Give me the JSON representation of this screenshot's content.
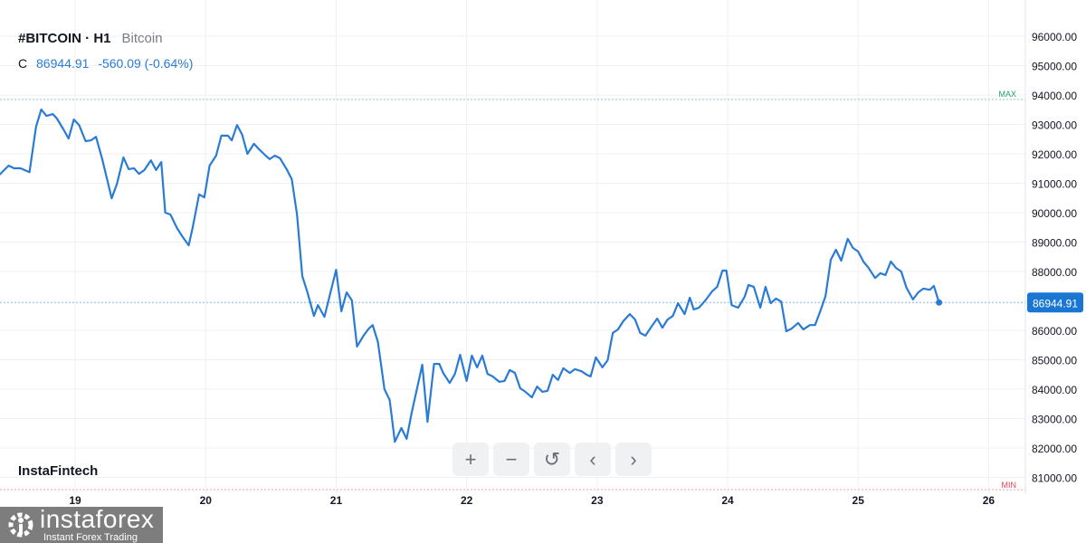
{
  "header": {
    "symbol": "#BITCOIN · H1",
    "description": "Bitcoin",
    "close_label": "C",
    "close_value": "86944.91",
    "change": "-560.09 (-0.64%)"
  },
  "branding": {
    "chart_brand": "InstaFintech",
    "logo_name": "instaforex",
    "logo_tagline": "Instant Forex Trading"
  },
  "controls": [
    {
      "name": "zoom-in-button",
      "icon": "plus-icon",
      "glyph": "+"
    },
    {
      "name": "zoom-out-button",
      "icon": "minus-icon",
      "glyph": "−"
    },
    {
      "name": "reset-button",
      "icon": "reset-icon",
      "glyph": "↺"
    },
    {
      "name": "scroll-left-button",
      "icon": "chevron-left-icon",
      "glyph": "‹"
    },
    {
      "name": "scroll-right-button",
      "icon": "chevron-right-icon",
      "glyph": "›"
    }
  ],
  "colors": {
    "line": "#2a7bd5",
    "max": "#26a269",
    "min": "#e0445a",
    "price_tag": "#1976d2"
  },
  "chart_data": {
    "type": "line",
    "xlabel": "",
    "ylabel": "",
    "x_ticks": [
      "19",
      "20",
      "21",
      "22",
      "23",
      "24",
      "25",
      "26"
    ],
    "y_ticks": [
      "96000.00",
      "95000.00",
      "94000.00",
      "93000.00",
      "92000.00",
      "91000.00",
      "90000.00",
      "89000.00",
      "88000.00",
      "86000.00",
      "85000.00",
      "84000.00",
      "83000.00",
      "82000.00",
      "81000.00"
    ],
    "ylim": [
      80400,
      96500
    ],
    "xlim": [
      18.42,
      26.25
    ],
    "grid": true,
    "last_price": {
      "value": 86944.91,
      "label": "86944.91"
    },
    "max_line": {
      "value": 93850,
      "label": "MAX"
    },
    "min_line": {
      "value": 80580,
      "label": "MIN"
    },
    "series": [
      {
        "x": [
          18.42,
          18.49,
          18.53,
          18.58,
          18.65,
          18.7,
          18.74,
          18.78,
          18.83,
          18.86,
          18.91,
          18.95,
          18.99,
          19.03,
          19.08,
          19.12,
          19.16,
          19.21,
          19.28,
          19.32,
          19.37,
          19.41,
          19.45,
          19.49,
          19.53,
          19.58,
          19.62,
          19.66,
          19.69,
          19.73,
          19.78,
          19.82,
          19.87,
          19.9,
          19.95,
          19.99,
          20.03,
          20.08,
          20.12,
          20.17,
          20.2,
          20.24,
          20.28,
          20.32,
          20.37,
          20.41,
          20.46,
          20.49,
          20.53,
          20.57,
          20.62,
          20.66,
          20.7,
          20.74,
          20.78,
          20.83,
          20.86,
          20.91,
          21.0,
          21.04,
          21.08,
          21.12,
          21.16,
          21.21,
          21.25,
          21.28,
          21.32,
          21.37,
          21.41,
          21.45,
          21.5,
          21.54,
          21.58,
          21.62,
          21.66,
          21.7,
          21.75,
          21.79,
          21.82,
          21.87,
          21.91,
          21.95,
          22.0,
          22.04,
          22.08,
          22.12,
          22.16,
          22.2,
          22.25,
          22.29,
          22.33,
          22.37,
          22.41,
          22.45,
          22.5,
          22.54,
          22.58,
          22.62,
          22.66,
          22.7,
          22.74,
          22.79,
          22.83,
          22.88,
          22.92,
          22.95,
          22.99,
          23.04,
          23.08,
          23.12,
          23.16,
          23.2,
          23.25,
          23.29,
          23.33,
          23.37,
          23.42,
          23.46,
          23.5,
          23.54,
          23.58,
          23.62,
          23.67,
          23.71,
          23.74,
          23.78,
          23.83,
          23.88,
          23.92,
          23.96,
          23.99,
          24.03,
          24.08,
          24.13,
          24.16,
          24.2,
          24.25,
          24.29,
          24.33,
          24.37,
          24.41,
          24.45,
          24.49,
          24.54,
          24.58,
          24.63,
          24.67,
          24.71,
          24.75,
          24.79,
          24.83,
          24.87,
          24.92,
          24.96,
          25.0,
          25.04,
          25.08,
          25.13,
          25.17,
          25.21,
          25.25,
          25.29,
          25.33,
          25.37,
          25.42,
          25.46,
          25.5,
          25.55,
          25.58,
          25.62
        ],
        "values": [
          91290,
          91600,
          91510,
          91510,
          91380,
          92920,
          93510,
          93290,
          93350,
          93200,
          92830,
          92520,
          93170,
          92980,
          92430,
          92460,
          92580,
          91780,
          90490,
          90980,
          91880,
          91480,
          91510,
          91320,
          91450,
          91780,
          91450,
          91720,
          90000,
          89940,
          89480,
          89200,
          88890,
          89480,
          90620,
          90520,
          91600,
          91940,
          92620,
          92620,
          92460,
          92980,
          92650,
          92000,
          92340,
          92150,
          91940,
          91820,
          91940,
          91850,
          91480,
          91140,
          89940,
          87850,
          87290,
          86490,
          86860,
          86460,
          88060,
          86650,
          87290,
          87020,
          85450,
          85820,
          86060,
          86180,
          85600,
          84000,
          83630,
          82210,
          82680,
          82310,
          83230,
          84030,
          84830,
          82890,
          84860,
          84860,
          84550,
          84210,
          84520,
          85170,
          84280,
          85140,
          84740,
          85140,
          84520,
          84430,
          84250,
          84280,
          84650,
          84550,
          84030,
          83910,
          83720,
          84090,
          83910,
          83940,
          84490,
          84310,
          84710,
          84550,
          84680,
          84610,
          84490,
          84430,
          85080,
          84740,
          84980,
          85910,
          86030,
          86310,
          86550,
          86370,
          85910,
          85820,
          86150,
          86400,
          86090,
          86370,
          86490,
          86920,
          86550,
          87110,
          86710,
          86770,
          87020,
          87320,
          87480,
          88030,
          88030,
          86860,
          86770,
          87140,
          87540,
          87480,
          86770,
          87480,
          86920,
          87080,
          86980,
          85970,
          86060,
          86250,
          86030,
          86180,
          86180,
          86650,
          87170,
          88400,
          88740,
          88370,
          89110,
          88800,
          88680,
          88340,
          88120,
          87780,
          87940,
          87880,
          88340,
          88120,
          88000,
          87450,
          87050,
          87290,
          87420,
          87380,
          87510,
          86944.91
        ]
      }
    ]
  }
}
